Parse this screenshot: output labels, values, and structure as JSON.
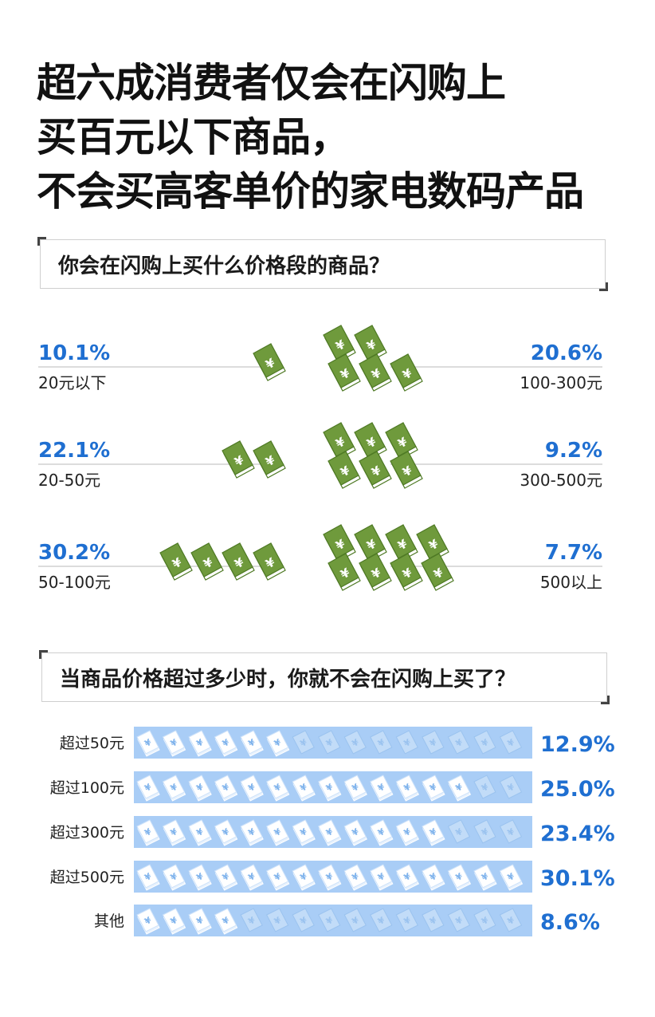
{
  "title_lines": [
    "超六成消费者仅会在闪购上",
    "买百元以下商品，",
    "不会买高客单价的家电数码产品"
  ],
  "question1": "你会在闪购上买什么价格段的商品？",
  "question2": "当商品价格超过多少时，你就不会在闪购上买了？",
  "colors": {
    "accent_blue": "#1f6fd1",
    "money_green": "#6f9a3c",
    "bar_light_blue": "#a9cdf6"
  },
  "chart_data": [
    {
      "type": "pictograph",
      "title": "你会在闪购上买什么价格段的商品？",
      "series": [
        {
          "category": "20元以下",
          "value": 10.1,
          "label": "10.1%",
          "icons": 1,
          "side": "left"
        },
        {
          "category": "20-50元",
          "value": 22.1,
          "label": "22.1%",
          "icons": 2,
          "side": "left"
        },
        {
          "category": "50-100元",
          "value": 30.2,
          "label": "30.2%",
          "icons": 4,
          "side": "left"
        },
        {
          "category": "100-300元",
          "value": 20.6,
          "label": "20.6%",
          "icons": 5,
          "side": "right"
        },
        {
          "category": "300-500元",
          "value": 9.2,
          "label": "9.2%",
          "icons": 6,
          "side": "right"
        },
        {
          "category": "500以上",
          "value": 7.7,
          "label": "7.7%",
          "icons": 8,
          "side": "right"
        }
      ]
    },
    {
      "type": "bar",
      "orientation": "horizontal",
      "title": "当商品价格超过多少时，你就不会在闪购上买了？",
      "categories": [
        "超过50元",
        "超过100元",
        "超过300元",
        "超过500元",
        "其他"
      ],
      "values": [
        12.9,
        25.0,
        23.4,
        30.1,
        8.6
      ],
      "value_labels": [
        "12.9%",
        "25.0%",
        "23.4%",
        "30.1%",
        "8.6%"
      ],
      "filled_icons": [
        6,
        13,
        12,
        15,
        4
      ],
      "total_icons": 15,
      "xlim": [
        0,
        30.1
      ]
    }
  ]
}
